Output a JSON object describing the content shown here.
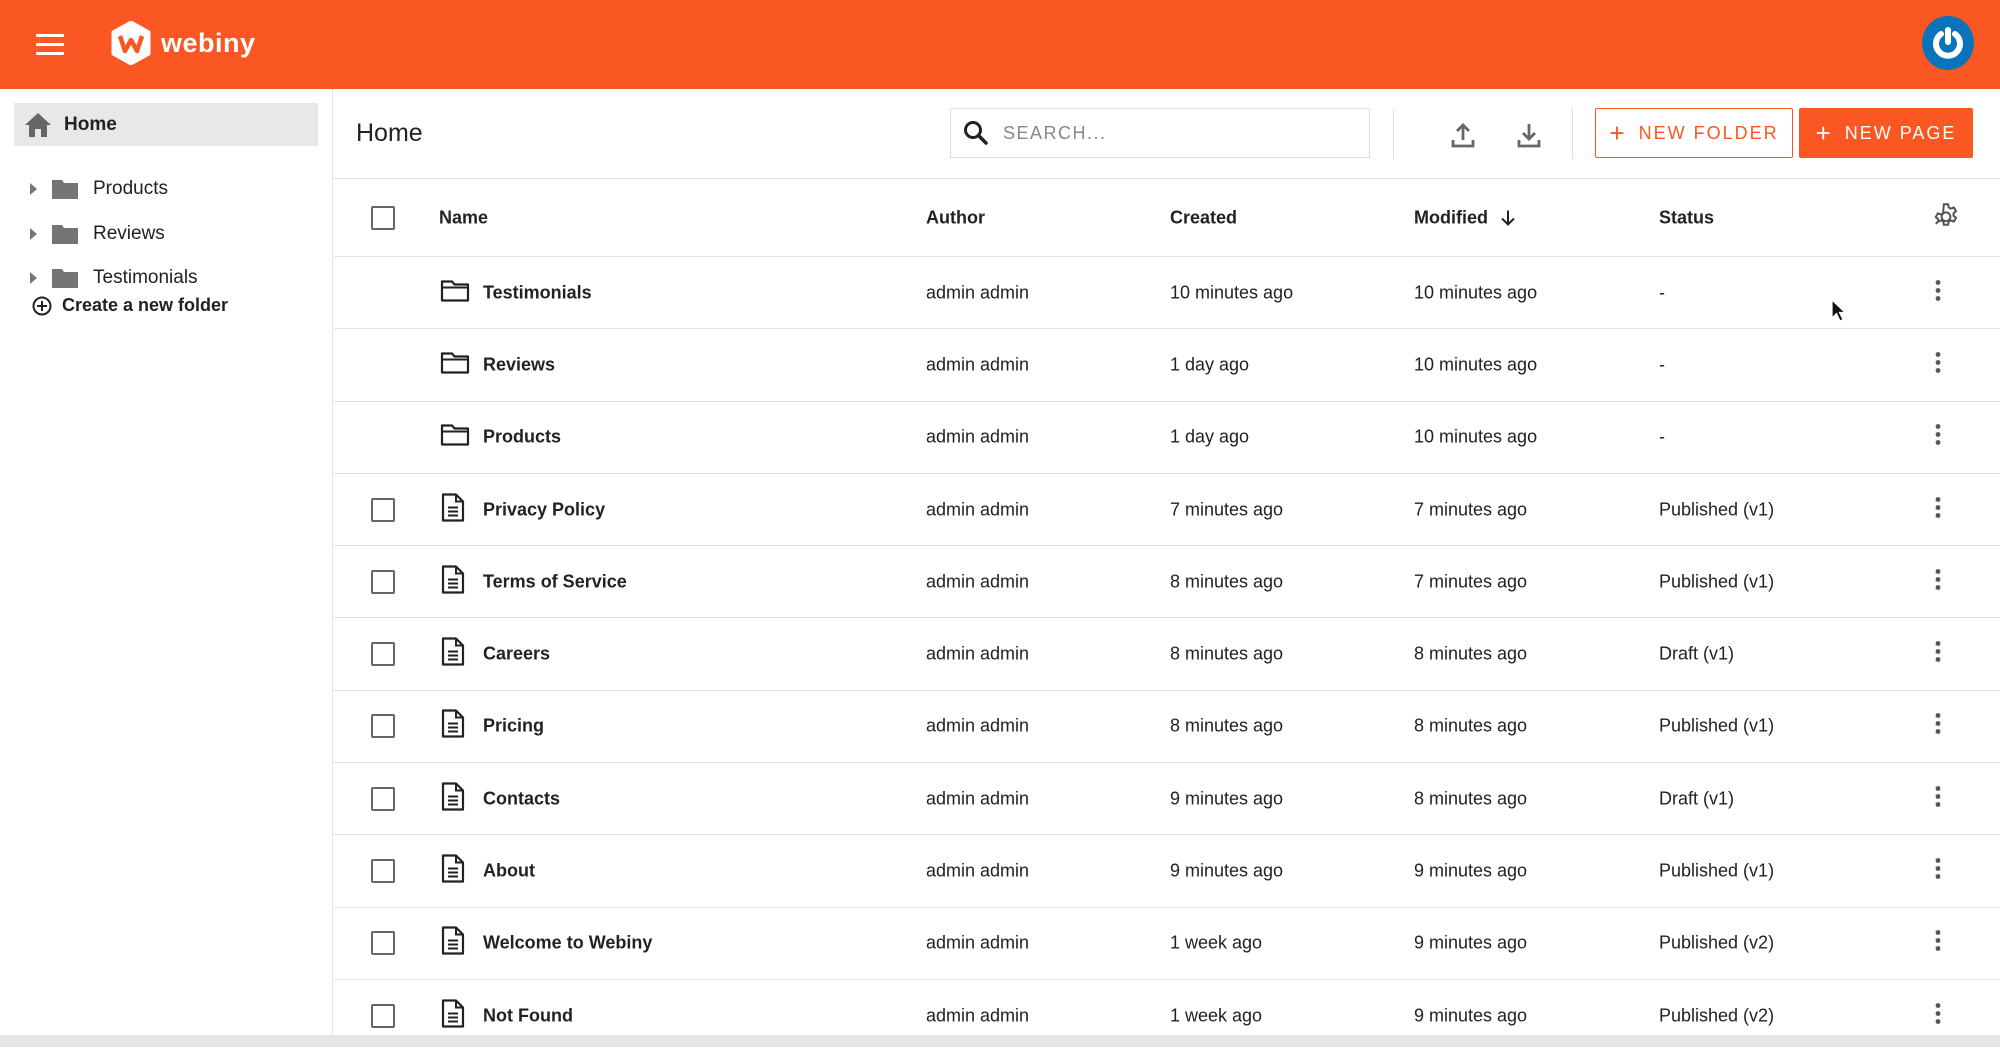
{
  "header": {
    "brand": "webiny",
    "colors": {
      "accent": "#fa5723",
      "avatar": "#0a74bb"
    }
  },
  "sidebar": {
    "home": "Home",
    "folders": [
      {
        "label": "Products"
      },
      {
        "label": "Reviews"
      },
      {
        "label": "Testimonials"
      }
    ],
    "create_folder": "Create a new folder"
  },
  "main": {
    "title": "Home",
    "search_placeholder": "SEARCH...",
    "new_folder": "NEW FOLDER",
    "new_page": "NEW PAGE"
  },
  "table": {
    "columns": {
      "name": "Name",
      "author": "Author",
      "created": "Created",
      "modified": "Modified",
      "status": "Status"
    },
    "sort": {
      "column": "Modified",
      "direction": "descending"
    },
    "rows": [
      {
        "type": "folder",
        "name": "Testimonials",
        "author": "admin admin",
        "created": "10 minutes ago",
        "modified": "10 minutes ago",
        "status": "-"
      },
      {
        "type": "folder",
        "name": "Reviews",
        "author": "admin admin",
        "created": "1 day ago",
        "modified": "10 minutes ago",
        "status": "-"
      },
      {
        "type": "folder",
        "name": "Products",
        "author": "admin admin",
        "created": "1 day ago",
        "modified": "10 minutes ago",
        "status": "-"
      },
      {
        "type": "page",
        "name": "Privacy Policy",
        "author": "admin admin",
        "created": "7 minutes ago",
        "modified": "7 minutes ago",
        "status": "Published (v1)"
      },
      {
        "type": "page",
        "name": "Terms of Service",
        "author": "admin admin",
        "created": "8 minutes ago",
        "modified": "7 minutes ago",
        "status": "Published (v1)"
      },
      {
        "type": "page",
        "name": "Careers",
        "author": "admin admin",
        "created": "8 minutes ago",
        "modified": "8 minutes ago",
        "status": "Draft (v1)"
      },
      {
        "type": "page",
        "name": "Pricing",
        "author": "admin admin",
        "created": "8 minutes ago",
        "modified": "8 minutes ago",
        "status": "Published (v1)"
      },
      {
        "type": "page",
        "name": "Contacts",
        "author": "admin admin",
        "created": "9 minutes ago",
        "modified": "8 minutes ago",
        "status": "Draft (v1)"
      },
      {
        "type": "page",
        "name": "About",
        "author": "admin admin",
        "created": "9 minutes ago",
        "modified": "9 minutes ago",
        "status": "Published (v1)"
      },
      {
        "type": "page",
        "name": "Welcome to Webiny",
        "author": "admin admin",
        "created": "1 week ago",
        "modified": "9 minutes ago",
        "status": "Published (v2)"
      },
      {
        "type": "page",
        "name": "Not Found",
        "author": "admin admin",
        "created": "1 week ago",
        "modified": "9 minutes ago",
        "status": "Published (v2)"
      }
    ]
  }
}
